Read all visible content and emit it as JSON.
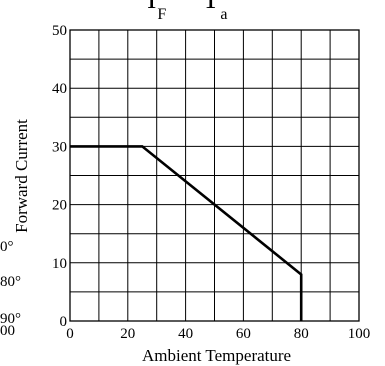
{
  "chart_data": {
    "type": "line",
    "title_left": "I",
    "title_left_sub": "F",
    "title_right": "T",
    "title_right_sub": "a",
    "xlabel": "Ambient Temperature",
    "ylabel": "Forward Current",
    "xlim": [
      0,
      100
    ],
    "ylim": [
      0,
      50
    ],
    "x_grid_step": 10,
    "y_grid_step": 5,
    "x_ticks": [
      0,
      20,
      40,
      60,
      80,
      100
    ],
    "y_ticks": [
      0,
      10,
      20,
      30,
      40,
      50
    ],
    "grid": true,
    "series": [
      {
        "x": [
          0,
          25,
          80,
          80
        ],
        "y": [
          30,
          30,
          8,
          0
        ]
      }
    ],
    "color": "#000000"
  },
  "left_fragments": [
    "0°",
    "80°",
    "90°",
    "00"
  ]
}
